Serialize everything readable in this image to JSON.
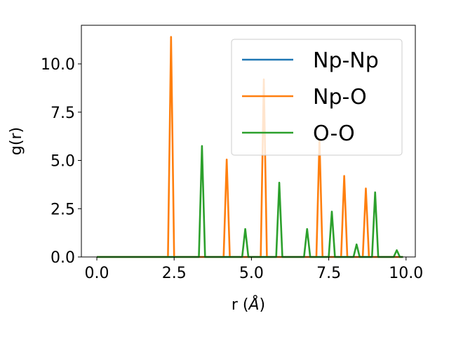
{
  "chart_data": {
    "type": "line",
    "xlabel_main": "r (",
    "xlabel_unit": "Å",
    "xlabel_close": ")",
    "ylabel": "g(r)",
    "xlim": [
      -0.5,
      10.3
    ],
    "ylim": [
      0,
      12.0
    ],
    "xticks": [
      0.0,
      2.5,
      5.0,
      7.5,
      10.0
    ],
    "xtick_labels": [
      "0.0",
      "2.5",
      "5.0",
      "7.5",
      "10.0"
    ],
    "yticks": [
      0.0,
      2.5,
      5.0,
      7.5,
      10.0
    ],
    "ytick_labels": [
      "0.0",
      "2.5",
      "5.0",
      "7.5",
      "10.0"
    ],
    "grid": false,
    "legend_position": "top-right",
    "series": [
      {
        "name": "Np-Np",
        "color": "#1f77b4",
        "x": [
          0.0,
          9.9
        ],
        "y": [
          0.0,
          0.0
        ]
      },
      {
        "name": "Np-O",
        "color": "#ff7f0e",
        "x": [
          0.0,
          2.3,
          2.4,
          2.5,
          4.1,
          4.2,
          4.3,
          5.3,
          5.4,
          5.5,
          7.1,
          7.2,
          7.3,
          7.9,
          8.0,
          8.1,
          8.6,
          8.7,
          8.8,
          9.9
        ],
        "y": [
          0.0,
          0.0,
          11.4,
          0.0,
          0.0,
          5.05,
          0.0,
          0.0,
          9.2,
          0.0,
          0.0,
          6.1,
          0.0,
          0.0,
          4.2,
          0.0,
          0.0,
          3.55,
          0.0,
          0.0
        ]
      },
      {
        "name": "O-O",
        "color": "#2ca02c",
        "x": [
          0.0,
          3.3,
          3.4,
          3.5,
          4.7,
          4.8,
          4.9,
          5.8,
          5.9,
          6.0,
          6.7,
          6.8,
          6.9,
          7.5,
          7.6,
          7.7,
          8.3,
          8.4,
          8.5,
          8.9,
          9.0,
          9.1,
          9.6,
          9.7,
          9.8,
          9.9
        ],
        "y": [
          0.0,
          0.0,
          5.75,
          0.0,
          0.0,
          1.45,
          0.0,
          0.0,
          3.85,
          0.0,
          0.0,
          1.45,
          0.0,
          0.0,
          2.35,
          0.0,
          0.0,
          0.65,
          0.0,
          0.0,
          3.35,
          0.0,
          0.0,
          0.35,
          0.0,
          0.0
        ]
      }
    ]
  }
}
